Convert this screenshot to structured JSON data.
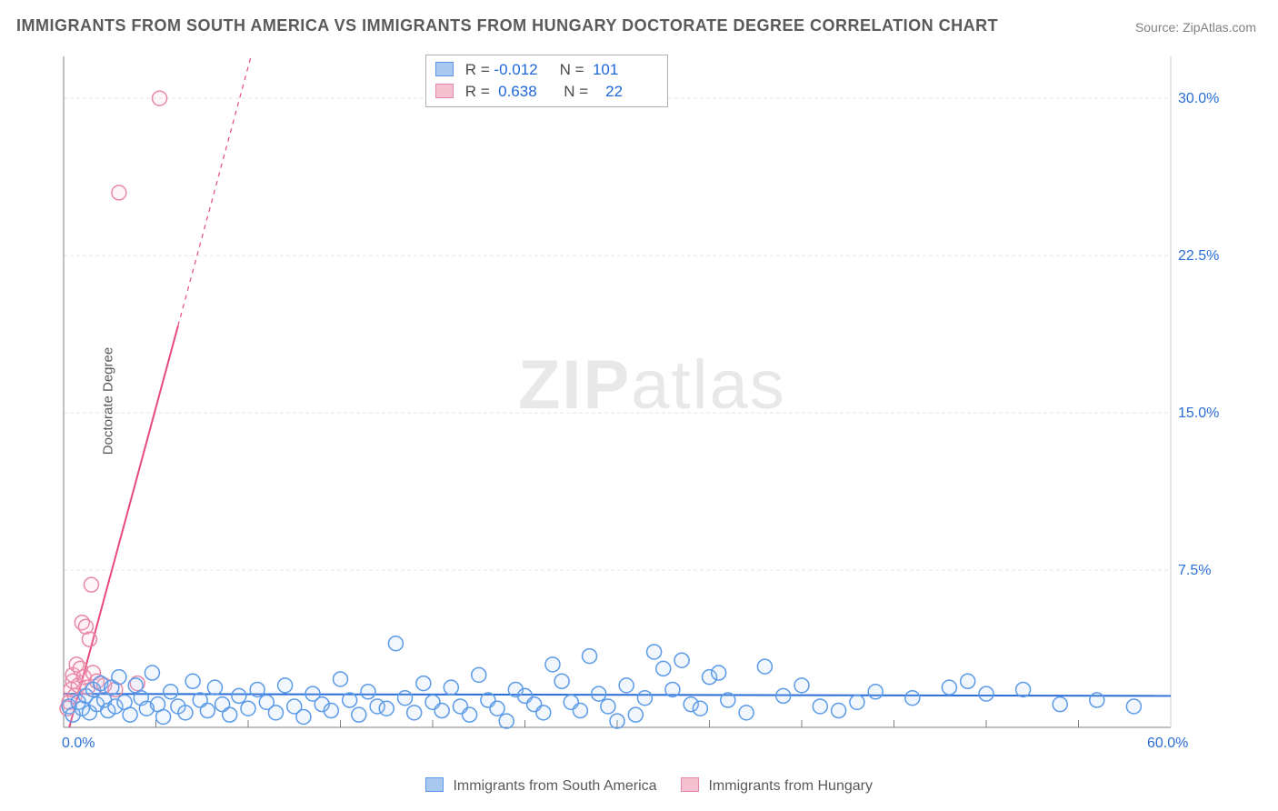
{
  "title": "IMMIGRANTS FROM SOUTH AMERICA VS IMMIGRANTS FROM HUNGARY DOCTORATE DEGREE CORRELATION CHART",
  "source_label": "Source:",
  "source_value": "ZipAtlas.com",
  "y_axis_label": "Doctorate Degree",
  "watermark": {
    "zip": "ZIP",
    "atlas": "atlas"
  },
  "chart": {
    "type": "scatter",
    "xlim": [
      0,
      60
    ],
    "ylim": [
      0,
      32
    ],
    "x_origin_label": "0.0%",
    "x_max_label": "60.0%",
    "y_ticks": [
      7.5,
      15.0,
      22.5,
      30.0
    ],
    "y_tick_labels": [
      "7.5%",
      "15.0%",
      "22.5%",
      "30.0%"
    ],
    "x_minor_tick_step": 5,
    "background_color": "#ffffff",
    "grid_color": "#e5e5e5",
    "grid_dash": "4,3",
    "axis_color": "#808080",
    "tick_label_color": "#2a6dd6",
    "tick_label_fontsize": 16,
    "marker_radius": 8,
    "marker_fill_opacity": 0.15,
    "marker_stroke_width": 1.5,
    "trend_line_width": 2
  },
  "series": {
    "sa": {
      "label": "Immigrants from South America",
      "color_stroke": "#5a9ae8",
      "color_fill": "#a8c8f0",
      "trend_color": "#2a6dd6",
      "r": "-0.012",
      "n": "101",
      "trend": {
        "x1": 0,
        "y1": 1.6,
        "x2": 60,
        "y2": 1.5
      },
      "points": [
        [
          0.3,
          1.0
        ],
        [
          0.5,
          0.6
        ],
        [
          0.8,
          1.2
        ],
        [
          1.0,
          0.9
        ],
        [
          1.2,
          1.5
        ],
        [
          1.4,
          0.7
        ],
        [
          1.6,
          1.8
        ],
        [
          1.8,
          1.1
        ],
        [
          2.0,
          2.1
        ],
        [
          2.2,
          1.3
        ],
        [
          2.4,
          0.8
        ],
        [
          2.6,
          1.9
        ],
        [
          2.8,
          1.0
        ],
        [
          3.0,
          2.4
        ],
        [
          3.3,
          1.2
        ],
        [
          3.6,
          0.6
        ],
        [
          3.9,
          2.0
        ],
        [
          4.2,
          1.4
        ],
        [
          4.5,
          0.9
        ],
        [
          4.8,
          2.6
        ],
        [
          5.1,
          1.1
        ],
        [
          5.4,
          0.5
        ],
        [
          5.8,
          1.7
        ],
        [
          6.2,
          1.0
        ],
        [
          6.6,
          0.7
        ],
        [
          7.0,
          2.2
        ],
        [
          7.4,
          1.3
        ],
        [
          7.8,
          0.8
        ],
        [
          8.2,
          1.9
        ],
        [
          8.6,
          1.1
        ],
        [
          9.0,
          0.6
        ],
        [
          9.5,
          1.5
        ],
        [
          10.0,
          0.9
        ],
        [
          10.5,
          1.8
        ],
        [
          11.0,
          1.2
        ],
        [
          11.5,
          0.7
        ],
        [
          12.0,
          2.0
        ],
        [
          12.5,
          1.0
        ],
        [
          13.0,
          0.5
        ],
        [
          13.5,
          1.6
        ],
        [
          14.0,
          1.1
        ],
        [
          14.5,
          0.8
        ],
        [
          15.0,
          2.3
        ],
        [
          15.5,
          1.3
        ],
        [
          16.0,
          0.6
        ],
        [
          16.5,
          1.7
        ],
        [
          17.0,
          1.0
        ],
        [
          17.5,
          0.9
        ],
        [
          18.0,
          4.0
        ],
        [
          18.5,
          1.4
        ],
        [
          19.0,
          0.7
        ],
        [
          19.5,
          2.1
        ],
        [
          20.0,
          1.2
        ],
        [
          20.5,
          0.8
        ],
        [
          21.0,
          1.9
        ],
        [
          21.5,
          1.0
        ],
        [
          22.0,
          0.6
        ],
        [
          22.5,
          2.5
        ],
        [
          23.0,
          1.3
        ],
        [
          23.5,
          0.9
        ],
        [
          24.0,
          0.3
        ],
        [
          24.5,
          1.8
        ],
        [
          25.0,
          1.5
        ],
        [
          25.5,
          1.1
        ],
        [
          26.0,
          0.7
        ],
        [
          26.5,
          3.0
        ],
        [
          27.0,
          2.2
        ],
        [
          27.5,
          1.2
        ],
        [
          28.0,
          0.8
        ],
        [
          28.5,
          3.4
        ],
        [
          29.0,
          1.6
        ],
        [
          29.5,
          1.0
        ],
        [
          30.0,
          0.3
        ],
        [
          30.5,
          2.0
        ],
        [
          31.0,
          0.6
        ],
        [
          31.5,
          1.4
        ],
        [
          32.0,
          3.6
        ],
        [
          32.5,
          2.8
        ],
        [
          33.0,
          1.8
        ],
        [
          33.5,
          3.2
        ],
        [
          34.0,
          1.1
        ],
        [
          34.5,
          0.9
        ],
        [
          35.0,
          2.4
        ],
        [
          35.5,
          2.6
        ],
        [
          36.0,
          1.3
        ],
        [
          37.0,
          0.7
        ],
        [
          38.0,
          2.9
        ],
        [
          39.0,
          1.5
        ],
        [
          40.0,
          2.0
        ],
        [
          41.0,
          1.0
        ],
        [
          42.0,
          0.8
        ],
        [
          43.0,
          1.2
        ],
        [
          44.0,
          1.7
        ],
        [
          46.0,
          1.4
        ],
        [
          48.0,
          1.9
        ],
        [
          49.0,
          2.2
        ],
        [
          50.0,
          1.6
        ],
        [
          52.0,
          1.8
        ],
        [
          54.0,
          1.1
        ],
        [
          56.0,
          1.3
        ],
        [
          58.0,
          1.0
        ]
      ]
    },
    "hu": {
      "label": "Immigrants from Hungary",
      "color_stroke": "#e888a8",
      "color_fill": "#f5c0d0",
      "trend_color": "#e84a7a",
      "r": "0.638",
      "n": "22",
      "trend": {
        "x1": 0,
        "y1": -1.0,
        "x2": 12,
        "y2": 38
      },
      "trend_solid_until_x": 6.2,
      "points": [
        [
          0.2,
          0.9
        ],
        [
          0.3,
          1.2
        ],
        [
          0.4,
          1.8
        ],
        [
          0.5,
          2.2
        ],
        [
          0.5,
          2.5
        ],
        [
          0.6,
          1.5
        ],
        [
          0.7,
          3.0
        ],
        [
          0.8,
          2.0
        ],
        [
          0.9,
          2.8
        ],
        [
          1.0,
          5.0
        ],
        [
          1.1,
          2.4
        ],
        [
          1.2,
          4.8
        ],
        [
          1.3,
          1.9
        ],
        [
          1.4,
          4.2
        ],
        [
          1.5,
          6.8
        ],
        [
          1.6,
          2.6
        ],
        [
          1.8,
          2.2
        ],
        [
          2.2,
          2.0
        ],
        [
          2.8,
          1.8
        ],
        [
          4.0,
          2.1
        ],
        [
          3.0,
          25.5
        ],
        [
          5.2,
          30.0
        ]
      ]
    }
  },
  "legend_labels": {
    "R": "R =",
    "N": "N ="
  }
}
